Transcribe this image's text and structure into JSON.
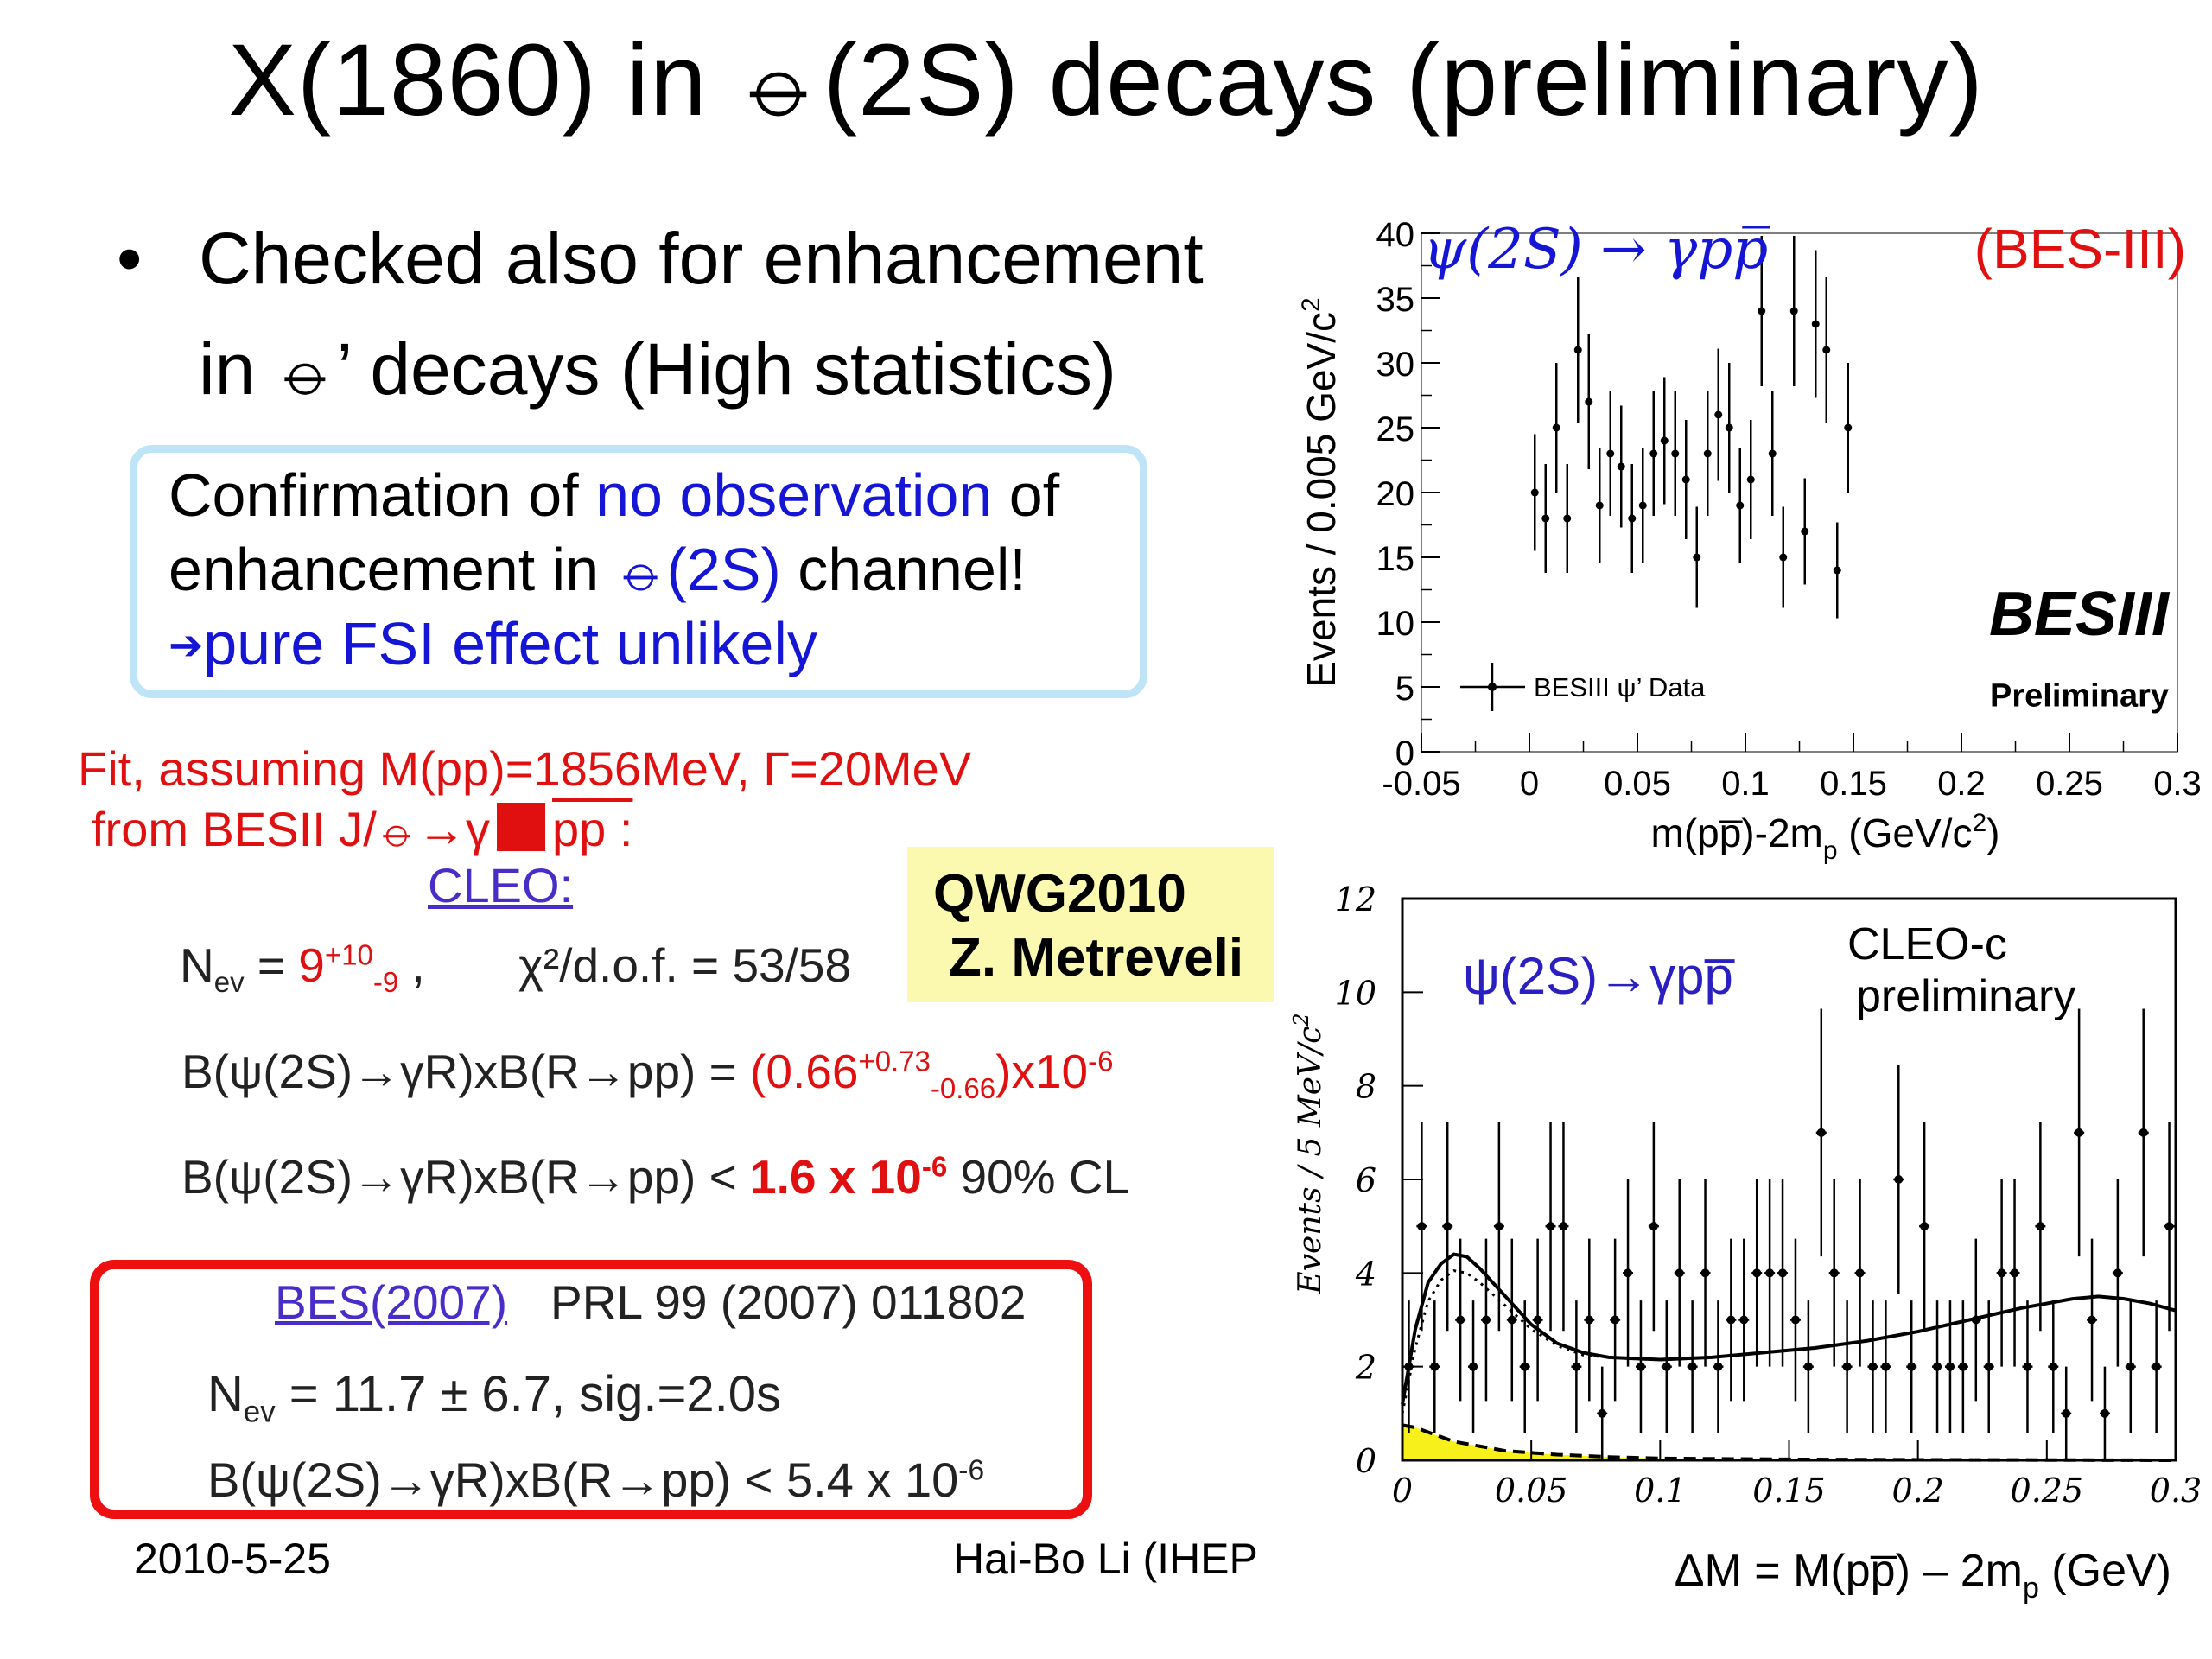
{
  "title": "X(1860) in ⦵(2S) decays (preliminary)",
  "bullet": {
    "symbol": "•",
    "line1": "Checked also for enhancement",
    "line2": "in ⦵’ decays (High statistics)"
  },
  "confirmation": {
    "t1": "Confirmation of ",
    "t2": "no observation",
    "t3": " of",
    "t4": "enhancement in ",
    "t5": "⦵(2S)",
    "t6": " channel!",
    "t7": "➔",
    "t8": "pure FSI effect unlikely"
  },
  "fit_note": {
    "l1": "Fit, assuming M(pp)=1856MeV, Γ=20MeV",
    "l2a": "from BESII J/⦵→γ",
    "l2b": "pp :"
  },
  "cleo": {
    "label": "CLEO:",
    "nev_a": "N",
    "nev_sub": "ev",
    "nev_b": " = ",
    "nev_val": "9",
    "nev_up": "+10",
    "nev_dn": "-9",
    "nev_c": " ,",
    "chi": "χ²/d.o.f. = 53/58",
    "b1a": "B(ψ(2S)→γR)xB(R→pp) = ",
    "b1b": "(0.66",
    "b1up": "+0.73",
    "b1dn": "-0.66",
    "b1c": ")x10",
    "b1exp": "-6",
    "b2a": "B(ψ(2S)→γR)xB(R→pp) < ",
    "b2b": "1.6 x 10",
    "b2exp": "-6",
    "b2c": "   90% CL"
  },
  "qwg": {
    "l1": "QWG2010",
    "l2": "Z. Metreveli"
  },
  "bes2007": {
    "label": "BES(2007)",
    "ref": "PRL 99 (2007) 011802",
    "nev_a": "N",
    "nev_sub": "ev",
    "nev_b": " = 11.7 ± 6.7,     sig.=2.0s",
    "b_a": "B(ψ(2S)→γR)xB(R→pp) < 5.4 x 10",
    "b_exp": "-6"
  },
  "footer": {
    "date": "2010-5-25",
    "author": "Hai-Bo Li (IHEP"
  },
  "colors": {
    "red": "#e01010",
    "blue": "#1515d6",
    "fill_yellow": "#f7f01a",
    "box_blue": "#bfe3f7"
  },
  "chart_data": [
    {
      "type": "scatter",
      "title": "ψ(2S) → γpp̅",
      "title_tag": "(BES-III)",
      "xlabel": "m(pp̅)-2m",
      "xlabel_sub": "p",
      "xlabel_unit": " (GeV/c",
      "xlabel_exp": "2",
      "xlabel_end": ")",
      "ylabel": "Events / 0.005 GeV/c",
      "ylabel_exp": "2",
      "xlim": [
        -0.05,
        0.3
      ],
      "ylim": [
        0,
        40
      ],
      "xticks": [
        "-0.05",
        "0",
        "0.05",
        "0.1",
        "0.15",
        "0.2",
        "0.25",
        "0.3"
      ],
      "yticks": [
        "0",
        "5",
        "10",
        "15",
        "20",
        "25",
        "30",
        "35",
        "40"
      ],
      "legend": "BESIII ψ’ Data",
      "watermark": "BESIII",
      "watermark_sub": "Preliminary",
      "points": [
        {
          "x": 0.0025,
          "y": 20,
          "err": 4.5
        },
        {
          "x": 0.0075,
          "y": 18,
          "err": 4.2
        },
        {
          "x": 0.0125,
          "y": 25,
          "err": 5.0
        },
        {
          "x": 0.0175,
          "y": 18,
          "err": 4.2
        },
        {
          "x": 0.0225,
          "y": 31,
          "err": 5.6
        },
        {
          "x": 0.0275,
          "y": 27,
          "err": 5.2
        },
        {
          "x": 0.0325,
          "y": 19,
          "err": 4.4
        },
        {
          "x": 0.0375,
          "y": 23,
          "err": 4.8
        },
        {
          "x": 0.0425,
          "y": 22,
          "err": 4.7
        },
        {
          "x": 0.0475,
          "y": 18,
          "err": 4.2
        },
        {
          "x": 0.0525,
          "y": 19,
          "err": 4.4
        },
        {
          "x": 0.0575,
          "y": 23,
          "err": 4.8
        },
        {
          "x": 0.0625,
          "y": 24,
          "err": 4.9
        },
        {
          "x": 0.0675,
          "y": 23,
          "err": 4.8
        },
        {
          "x": 0.0725,
          "y": 21,
          "err": 4.6
        },
        {
          "x": 0.0775,
          "y": 15,
          "err": 3.9
        },
        {
          "x": 0.0825,
          "y": 23,
          "err": 4.8
        },
        {
          "x": 0.0875,
          "y": 26,
          "err": 5.1
        },
        {
          "x": 0.0925,
          "y": 25,
          "err": 5.0
        },
        {
          "x": 0.0975,
          "y": 19,
          "err": 4.4
        },
        {
          "x": 0.1025,
          "y": 21,
          "err": 4.6
        },
        {
          "x": 0.1075,
          "y": 34,
          "err": 5.8
        },
        {
          "x": 0.1125,
          "y": 23,
          "err": 4.8
        },
        {
          "x": 0.1175,
          "y": 15,
          "err": 3.9
        },
        {
          "x": 0.1225,
          "y": 34,
          "err": 5.8
        },
        {
          "x": 0.1275,
          "y": 17,
          "err": 4.1
        },
        {
          "x": 0.1325,
          "y": 33,
          "err": 5.7
        },
        {
          "x": 0.1375,
          "y": 31,
          "err": 5.6
        },
        {
          "x": 0.1425,
          "y": 14,
          "err": 3.7
        },
        {
          "x": 0.1475,
          "y": 25,
          "err": 5.0
        }
      ]
    },
    {
      "type": "scatter",
      "title": "ψ(2S)→γpp̅",
      "annotation": "CLEO-c",
      "annotation2": "preliminary",
      "xlabel": "ΔM = M(pp̅) – 2m",
      "xlabel_sub": "p",
      "xlabel_end": "  (GeV)",
      "ylabel": "Events / 5 MeV/c",
      "ylabel_exp": "2",
      "xlim": [
        0,
        0.3
      ],
      "ylim": [
        0,
        12
      ],
      "xticks": [
        "0",
        "0.05",
        "0.1",
        "0.15",
        "0.2",
        "0.25",
        "0.3"
      ],
      "yticks": [
        "0",
        "2",
        "4",
        "6",
        "8",
        "10",
        "12"
      ],
      "points": [
        {
          "x": 0.0025,
          "y": 2
        },
        {
          "x": 0.0075,
          "y": 5
        },
        {
          "x": 0.0125,
          "y": 2
        },
        {
          "x": 0.0175,
          "y": 5
        },
        {
          "x": 0.0225,
          "y": 3
        },
        {
          "x": 0.0275,
          "y": 2
        },
        {
          "x": 0.0325,
          "y": 3
        },
        {
          "x": 0.0375,
          "y": 5
        },
        {
          "x": 0.0425,
          "y": 3
        },
        {
          "x": 0.0475,
          "y": 2
        },
        {
          "x": 0.0525,
          "y": 3
        },
        {
          "x": 0.0575,
          "y": 5
        },
        {
          "x": 0.0625,
          "y": 5
        },
        {
          "x": 0.0675,
          "y": 2
        },
        {
          "x": 0.0725,
          "y": 3
        },
        {
          "x": 0.0775,
          "y": 1
        },
        {
          "x": 0.0825,
          "y": 3
        },
        {
          "x": 0.0875,
          "y": 4
        },
        {
          "x": 0.0925,
          "y": 2
        },
        {
          "x": 0.0975,
          "y": 5
        },
        {
          "x": 0.1025,
          "y": 2
        },
        {
          "x": 0.1075,
          "y": 4
        },
        {
          "x": 0.1125,
          "y": 2
        },
        {
          "x": 0.1175,
          "y": 4
        },
        {
          "x": 0.1225,
          "y": 2
        },
        {
          "x": 0.1275,
          "y": 3
        },
        {
          "x": 0.1325,
          "y": 3
        },
        {
          "x": 0.1375,
          "y": 4
        },
        {
          "x": 0.1425,
          "y": 4
        },
        {
          "x": 0.1475,
          "y": 4
        },
        {
          "x": 0.1525,
          "y": 3
        },
        {
          "x": 0.1575,
          "y": 2
        },
        {
          "x": 0.1625,
          "y": 7
        },
        {
          "x": 0.1675,
          "y": 4
        },
        {
          "x": 0.1725,
          "y": 2
        },
        {
          "x": 0.1775,
          "y": 4
        },
        {
          "x": 0.1825,
          "y": 2
        },
        {
          "x": 0.1875,
          "y": 2
        },
        {
          "x": 0.1925,
          "y": 6
        },
        {
          "x": 0.1975,
          "y": 2
        },
        {
          "x": 0.2025,
          "y": 5
        },
        {
          "x": 0.2075,
          "y": 2
        },
        {
          "x": 0.2125,
          "y": 2
        },
        {
          "x": 0.2175,
          "y": 2
        },
        {
          "x": 0.2225,
          "y": 3
        },
        {
          "x": 0.2275,
          "y": 2
        },
        {
          "x": 0.2325,
          "y": 4
        },
        {
          "x": 0.2375,
          "y": 4
        },
        {
          "x": 0.2425,
          "y": 2
        },
        {
          "x": 0.2475,
          "y": 5
        },
        {
          "x": 0.2525,
          "y": 2
        },
        {
          "x": 0.2575,
          "y": 1
        },
        {
          "x": 0.2625,
          "y": 7
        },
        {
          "x": 0.2675,
          "y": 3
        },
        {
          "x": 0.2725,
          "y": 1
        },
        {
          "x": 0.2775,
          "y": 4
        },
        {
          "x": 0.2825,
          "y": 2
        },
        {
          "x": 0.2875,
          "y": 7
        },
        {
          "x": 0.2925,
          "y": 2
        },
        {
          "x": 0.2975,
          "y": 5
        }
      ],
      "fit_solid": [
        [
          0,
          1.2
        ],
        [
          0.005,
          2.8
        ],
        [
          0.01,
          3.8
        ],
        [
          0.015,
          4.2
        ],
        [
          0.02,
          4.4
        ],
        [
          0.025,
          4.35
        ],
        [
          0.03,
          4.1
        ],
        [
          0.04,
          3.5
        ],
        [
          0.05,
          2.9
        ],
        [
          0.06,
          2.5
        ],
        [
          0.07,
          2.3
        ],
        [
          0.08,
          2.2
        ],
        [
          0.1,
          2.15
        ],
        [
          0.12,
          2.2
        ],
        [
          0.14,
          2.3
        ],
        [
          0.16,
          2.4
        ],
        [
          0.18,
          2.55
        ],
        [
          0.2,
          2.75
        ],
        [
          0.22,
          3.0
        ],
        [
          0.24,
          3.25
        ],
        [
          0.26,
          3.45
        ],
        [
          0.27,
          3.5
        ],
        [
          0.28,
          3.45
        ],
        [
          0.29,
          3.35
        ],
        [
          0.3,
          3.2
        ]
      ],
      "fit_dotted": [
        [
          0,
          1.0
        ],
        [
          0.005,
          2.4
        ],
        [
          0.01,
          3.4
        ],
        [
          0.015,
          3.85
        ],
        [
          0.02,
          4.05
        ],
        [
          0.025,
          4.0
        ],
        [
          0.03,
          3.8
        ],
        [
          0.04,
          3.3
        ],
        [
          0.05,
          2.8
        ],
        [
          0.06,
          2.45
        ],
        [
          0.07,
          2.25
        ],
        [
          0.08,
          2.2
        ],
        [
          0.1,
          2.15
        ],
        [
          0.12,
          2.2
        ],
        [
          0.14,
          2.3
        ],
        [
          0.16,
          2.4
        ],
        [
          0.18,
          2.55
        ],
        [
          0.2,
          2.75
        ],
        [
          0.22,
          3.0
        ],
        [
          0.24,
          3.25
        ],
        [
          0.26,
          3.45
        ],
        [
          0.27,
          3.5
        ],
        [
          0.28,
          3.45
        ],
        [
          0.29,
          3.35
        ],
        [
          0.3,
          3.2
        ]
      ],
      "bkg_dashed": [
        [
          0,
          0.75
        ],
        [
          0.005,
          0.7
        ],
        [
          0.01,
          0.6
        ],
        [
          0.015,
          0.5
        ],
        [
          0.02,
          0.4
        ],
        [
          0.03,
          0.3
        ],
        [
          0.04,
          0.2
        ],
        [
          0.06,
          0.12
        ],
        [
          0.08,
          0.07
        ],
        [
          0.1,
          0.04
        ],
        [
          0.15,
          0.02
        ],
        [
          0.2,
          0.01
        ],
        [
          0.3,
          0.0
        ]
      ]
    }
  ]
}
